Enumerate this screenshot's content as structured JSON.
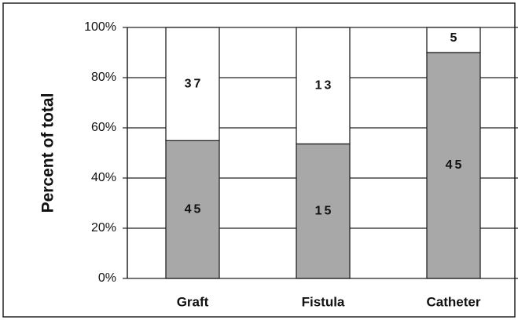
{
  "chart_data": {
    "type": "stacked_bar",
    "y_label": "Percent of total",
    "categories": [
      "Graft",
      "Fistula",
      "Catheter"
    ],
    "series": [
      {
        "color": "#a8a8a8",
        "values": [
          54.9,
          53.6,
          90
        ],
        "counts": [
          45,
          15,
          45
        ]
      },
      {
        "color": "#ffffff",
        "values": [
          45.1,
          46.4,
          10
        ],
        "counts": [
          37,
          13,
          5
        ]
      }
    ],
    "ylim": [
      0,
      100
    ],
    "yticks": [
      {
        "value": 0,
        "label": "0%"
      },
      {
        "value": 20,
        "label": "20%"
      },
      {
        "value": 40,
        "label": "40%"
      },
      {
        "value": 60,
        "label": "60%"
      },
      {
        "value": 80,
        "label": "80%"
      },
      {
        "value": 100,
        "label": "100%"
      }
    ],
    "grid": true
  }
}
